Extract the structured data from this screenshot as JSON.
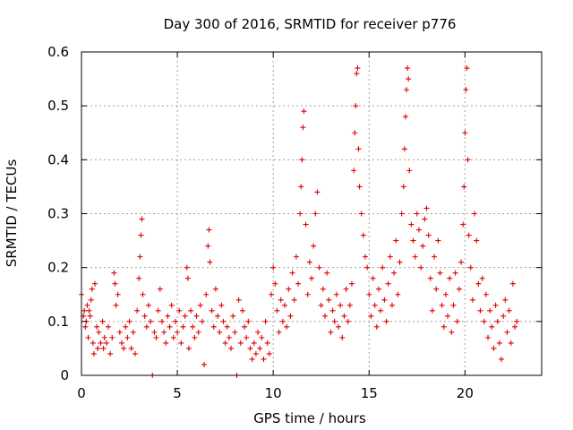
{
  "chart_data": {
    "type": "scatter",
    "title": "Day 300 of 2016, SRMTID for receiver p776",
    "xlabel": "GPS time / hours",
    "ylabel": "SRMTID / TECUs",
    "xlim": [
      0,
      24
    ],
    "ylim": [
      0,
      0.6
    ],
    "xticks": [
      0,
      5,
      10,
      15,
      20
    ],
    "xtick_labels": [
      "0",
      "5",
      "10",
      "15",
      "20"
    ],
    "yticks": [
      0,
      0.1,
      0.2,
      0.3,
      0.4,
      0.5,
      0.6
    ],
    "ytick_labels": [
      "0",
      "0.1",
      "0.2",
      "0.3",
      "0.4",
      "0.5",
      "0.6"
    ],
    "grid": true,
    "marker": "plus",
    "series": [
      {
        "name": "SRMTID",
        "color": "#e00000",
        "points": [
          [
            0.0,
            0.15
          ],
          [
            0.1,
            0.11
          ],
          [
            0.15,
            0.12
          ],
          [
            0.2,
            0.09
          ],
          [
            0.25,
            0.1
          ],
          [
            0.3,
            0.13
          ],
          [
            0.35,
            0.07
          ],
          [
            0.4,
            0.12
          ],
          [
            0.45,
            0.11
          ],
          [
            0.5,
            0.14
          ],
          [
            0.55,
            0.16
          ],
          [
            0.6,
            0.06
          ],
          [
            0.65,
            0.04
          ],
          [
            0.7,
            0.17
          ],
          [
            0.8,
            0.09
          ],
          [
            0.85,
            0.05
          ],
          [
            0.9,
            0.08
          ],
          [
            1.0,
            0.06
          ],
          [
            1.1,
            0.1
          ],
          [
            1.15,
            0.05
          ],
          [
            1.2,
            0.07
          ],
          [
            1.3,
            0.06
          ],
          [
            1.4,
            0.09
          ],
          [
            1.5,
            0.04
          ],
          [
            1.6,
            0.07
          ],
          [
            1.7,
            0.19
          ],
          [
            1.75,
            0.17
          ],
          [
            1.8,
            0.13
          ],
          [
            1.9,
            0.15
          ],
          [
            2.0,
            0.08
          ],
          [
            2.1,
            0.06
          ],
          [
            2.2,
            0.05
          ],
          [
            2.3,
            0.09
          ],
          [
            2.4,
            0.07
          ],
          [
            2.5,
            0.1
          ],
          [
            2.6,
            0.05
          ],
          [
            2.7,
            0.08
          ],
          [
            2.8,
            0.04
          ],
          [
            2.9,
            0.12
          ],
          [
            3.0,
            0.18
          ],
          [
            3.05,
            0.22
          ],
          [
            3.1,
            0.26
          ],
          [
            3.15,
            0.29
          ],
          [
            3.2,
            0.15
          ],
          [
            3.3,
            0.11
          ],
          [
            3.4,
            0.09
          ],
          [
            3.5,
            0.13
          ],
          [
            3.6,
            0.1
          ],
          [
            3.7,
            0.0
          ],
          [
            3.8,
            0.08
          ],
          [
            3.9,
            0.07
          ],
          [
            4.0,
            0.12
          ],
          [
            4.1,
            0.16
          ],
          [
            4.2,
            0.1
          ],
          [
            4.3,
            0.08
          ],
          [
            4.4,
            0.06
          ],
          [
            4.5,
            0.11
          ],
          [
            4.6,
            0.09
          ],
          [
            4.7,
            0.13
          ],
          [
            4.8,
            0.07
          ],
          [
            4.9,
            0.1
          ],
          [
            5.0,
            0.08
          ],
          [
            5.1,
            0.12
          ],
          [
            5.2,
            0.06
          ],
          [
            5.3,
            0.09
          ],
          [
            5.4,
            0.11
          ],
          [
            5.5,
            0.2
          ],
          [
            5.55,
            0.18
          ],
          [
            5.6,
            0.05
          ],
          [
            5.7,
            0.12
          ],
          [
            5.8,
            0.09
          ],
          [
            5.9,
            0.07
          ],
          [
            6.0,
            0.11
          ],
          [
            6.1,
            0.08
          ],
          [
            6.2,
            0.13
          ],
          [
            6.3,
            0.1
          ],
          [
            6.4,
            0.02
          ],
          [
            6.5,
            0.15
          ],
          [
            6.6,
            0.24
          ],
          [
            6.65,
            0.27
          ],
          [
            6.7,
            0.21
          ],
          [
            6.8,
            0.12
          ],
          [
            6.9,
            0.09
          ],
          [
            7.0,
            0.16
          ],
          [
            7.1,
            0.11
          ],
          [
            7.2,
            0.08
          ],
          [
            7.3,
            0.13
          ],
          [
            7.4,
            0.1
          ],
          [
            7.5,
            0.06
          ],
          [
            7.6,
            0.09
          ],
          [
            7.7,
            0.07
          ],
          [
            7.8,
            0.05
          ],
          [
            7.9,
            0.11
          ],
          [
            8.0,
            0.08
          ],
          [
            8.1,
            0.0
          ],
          [
            8.2,
            0.14
          ],
          [
            8.3,
            0.06
          ],
          [
            8.4,
            0.12
          ],
          [
            8.5,
            0.09
          ],
          [
            8.6,
            0.07
          ],
          [
            8.7,
            0.1
          ],
          [
            8.8,
            0.05
          ],
          [
            8.9,
            0.03
          ],
          [
            9.0,
            0.06
          ],
          [
            9.1,
            0.04
          ],
          [
            9.2,
            0.08
          ],
          [
            9.3,
            0.05
          ],
          [
            9.4,
            0.07
          ],
          [
            9.5,
            0.03
          ],
          [
            9.6,
            0.1
          ],
          [
            9.7,
            0.06
          ],
          [
            9.8,
            0.04
          ],
          [
            9.9,
            0.15
          ],
          [
            10.0,
            0.2
          ],
          [
            10.1,
            0.17
          ],
          [
            10.2,
            0.12
          ],
          [
            10.3,
            0.08
          ],
          [
            10.4,
            0.14
          ],
          [
            10.5,
            0.1
          ],
          [
            10.6,
            0.13
          ],
          [
            10.7,
            0.09
          ],
          [
            10.8,
            0.16
          ],
          [
            10.9,
            0.11
          ],
          [
            11.0,
            0.19
          ],
          [
            11.1,
            0.14
          ],
          [
            11.2,
            0.22
          ],
          [
            11.3,
            0.17
          ],
          [
            11.4,
            0.3
          ],
          [
            11.45,
            0.35
          ],
          [
            11.5,
            0.4
          ],
          [
            11.55,
            0.46
          ],
          [
            11.6,
            0.49
          ],
          [
            11.7,
            0.28
          ],
          [
            11.8,
            0.15
          ],
          [
            11.9,
            0.21
          ],
          [
            12.0,
            0.18
          ],
          [
            12.1,
            0.24
          ],
          [
            12.2,
            0.3
          ],
          [
            12.3,
            0.34
          ],
          [
            12.4,
            0.2
          ],
          [
            12.5,
            0.13
          ],
          [
            12.6,
            0.16
          ],
          [
            12.7,
            0.11
          ],
          [
            12.8,
            0.19
          ],
          [
            12.9,
            0.14
          ],
          [
            13.0,
            0.08
          ],
          [
            13.1,
            0.12
          ],
          [
            13.2,
            0.1
          ],
          [
            13.3,
            0.15
          ],
          [
            13.4,
            0.09
          ],
          [
            13.5,
            0.13
          ],
          [
            13.6,
            0.07
          ],
          [
            13.7,
            0.11
          ],
          [
            13.8,
            0.16
          ],
          [
            13.9,
            0.1
          ],
          [
            14.0,
            0.13
          ],
          [
            14.1,
            0.17
          ],
          [
            14.2,
            0.38
          ],
          [
            14.25,
            0.45
          ],
          [
            14.3,
            0.5
          ],
          [
            14.35,
            0.56
          ],
          [
            14.4,
            0.57
          ],
          [
            14.45,
            0.42
          ],
          [
            14.5,
            0.35
          ],
          [
            14.6,
            0.3
          ],
          [
            14.7,
            0.26
          ],
          [
            14.8,
            0.22
          ],
          [
            14.9,
            0.2
          ],
          [
            15.0,
            0.15
          ],
          [
            15.1,
            0.11
          ],
          [
            15.2,
            0.18
          ],
          [
            15.3,
            0.13
          ],
          [
            15.4,
            0.09
          ],
          [
            15.5,
            0.16
          ],
          [
            15.6,
            0.12
          ],
          [
            15.7,
            0.2
          ],
          [
            15.8,
            0.14
          ],
          [
            15.9,
            0.1
          ],
          [
            16.0,
            0.17
          ],
          [
            16.1,
            0.22
          ],
          [
            16.2,
            0.13
          ],
          [
            16.3,
            0.19
          ],
          [
            16.4,
            0.25
          ],
          [
            16.5,
            0.15
          ],
          [
            16.6,
            0.21
          ],
          [
            16.7,
            0.3
          ],
          [
            16.8,
            0.35
          ],
          [
            16.85,
            0.42
          ],
          [
            16.9,
            0.48
          ],
          [
            16.95,
            0.53
          ],
          [
            17.0,
            0.57
          ],
          [
            17.05,
            0.55
          ],
          [
            17.1,
            0.38
          ],
          [
            17.2,
            0.28
          ],
          [
            17.3,
            0.25
          ],
          [
            17.4,
            0.22
          ],
          [
            17.5,
            0.3
          ],
          [
            17.6,
            0.27
          ],
          [
            17.7,
            0.2
          ],
          [
            17.8,
            0.24
          ],
          [
            17.9,
            0.29
          ],
          [
            18.0,
            0.31
          ],
          [
            18.1,
            0.26
          ],
          [
            18.2,
            0.18
          ],
          [
            18.3,
            0.12
          ],
          [
            18.4,
            0.22
          ],
          [
            18.5,
            0.16
          ],
          [
            18.6,
            0.25
          ],
          [
            18.7,
            0.19
          ],
          [
            18.8,
            0.13
          ],
          [
            18.9,
            0.09
          ],
          [
            19.0,
            0.15
          ],
          [
            19.1,
            0.11
          ],
          [
            19.2,
            0.18
          ],
          [
            19.3,
            0.08
          ],
          [
            19.4,
            0.13
          ],
          [
            19.5,
            0.19
          ],
          [
            19.6,
            0.1
          ],
          [
            19.7,
            0.16
          ],
          [
            19.8,
            0.21
          ],
          [
            19.9,
            0.28
          ],
          [
            19.95,
            0.35
          ],
          [
            20.0,
            0.45
          ],
          [
            20.05,
            0.53
          ],
          [
            20.1,
            0.57
          ],
          [
            20.15,
            0.4
          ],
          [
            20.2,
            0.26
          ],
          [
            20.3,
            0.2
          ],
          [
            20.4,
            0.14
          ],
          [
            20.5,
            0.3
          ],
          [
            20.6,
            0.25
          ],
          [
            20.7,
            0.17
          ],
          [
            20.8,
            0.12
          ],
          [
            20.9,
            0.18
          ],
          [
            21.0,
            0.1
          ],
          [
            21.1,
            0.15
          ],
          [
            21.2,
            0.07
          ],
          [
            21.3,
            0.12
          ],
          [
            21.4,
            0.09
          ],
          [
            21.5,
            0.05
          ],
          [
            21.6,
            0.13
          ],
          [
            21.7,
            0.1
          ],
          [
            21.8,
            0.06
          ],
          [
            21.9,
            0.03
          ],
          [
            22.0,
            0.11
          ],
          [
            22.1,
            0.14
          ],
          [
            22.2,
            0.08
          ],
          [
            22.3,
            0.12
          ],
          [
            22.4,
            0.06
          ],
          [
            22.5,
            0.17
          ],
          [
            22.6,
            0.09
          ],
          [
            22.7,
            0.1
          ]
        ]
      }
    ]
  }
}
